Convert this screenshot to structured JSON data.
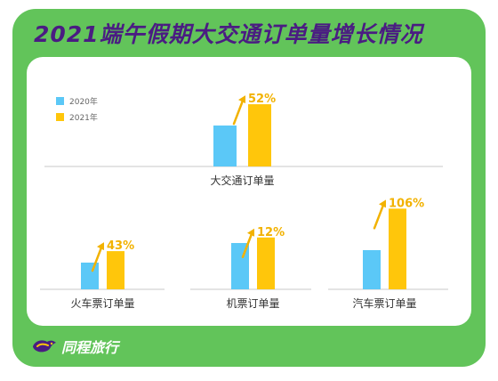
{
  "title": "2021端午假期大交通订单量增长情况",
  "brand": {
    "name": "同程旅行",
    "icon": "tongcheng-logo-icon"
  },
  "colors": {
    "frame": "#62c45a",
    "title": "#4a1c82",
    "series_2020": "#5bc8f7",
    "series_2021": "#ffc60b",
    "growth": "#f2b200"
  },
  "chart_data": [
    {
      "type": "bar",
      "category": "大交通订单量",
      "growth_label": "52%",
      "legend": [
        "2020年",
        "2021年"
      ],
      "series": [
        {
          "name": "2020年",
          "values": [
            100
          ]
        },
        {
          "name": "2021年",
          "values": [
            152
          ]
        }
      ]
    },
    {
      "type": "bar",
      "category": "火车票订单量",
      "growth_label": "43%",
      "series": [
        {
          "name": "2020年",
          "values": [
            100
          ]
        },
        {
          "name": "2021年",
          "values": [
            143
          ]
        }
      ]
    },
    {
      "type": "bar",
      "category": "机票订单量",
      "growth_label": "12%",
      "series": [
        {
          "name": "2020年",
          "values": [
            100
          ]
        },
        {
          "name": "2021年",
          "values": [
            112
          ]
        }
      ]
    },
    {
      "type": "bar",
      "category": "汽车票订单量",
      "growth_label": "106%",
      "series": [
        {
          "name": "2020年",
          "values": [
            100
          ]
        },
        {
          "name": "2021年",
          "values": [
            206
          ]
        }
      ]
    }
  ]
}
